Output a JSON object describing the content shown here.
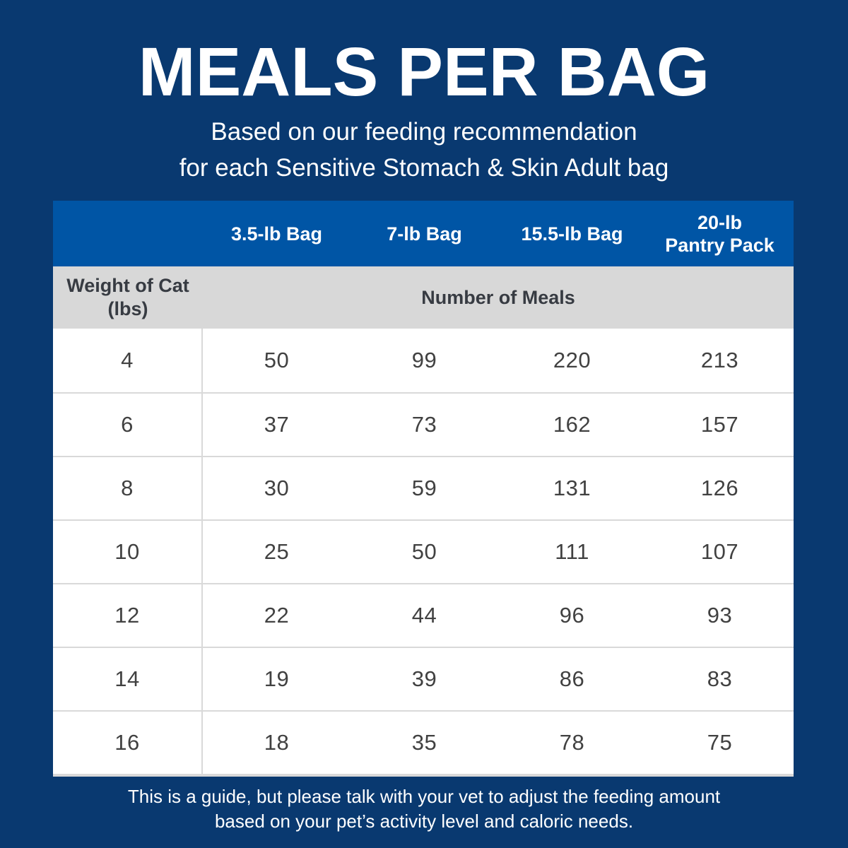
{
  "title": "MEALS PER BAG",
  "subtitle_lines": [
    "Based on our feeding recommendation",
    "for each Sensitive Stomach & Skin Adult bag"
  ],
  "table": {
    "corner_label": "",
    "bag_headers": [
      "3.5-lb Bag",
      "7-lb Bag",
      "15.5-lb Bag",
      "20-lb\nPantry Pack"
    ],
    "weight_header": "Weight of Cat\n(lbs)",
    "meals_header": "Number of Meals",
    "rows": [
      {
        "weight": "4",
        "meals": [
          "50",
          "99",
          "220",
          "213"
        ]
      },
      {
        "weight": "6",
        "meals": [
          "37",
          "73",
          "162",
          "157"
        ]
      },
      {
        "weight": "8",
        "meals": [
          "30",
          "59",
          "131",
          "126"
        ]
      },
      {
        "weight": "10",
        "meals": [
          "25",
          "50",
          "111",
          "107"
        ]
      },
      {
        "weight": "12",
        "meals": [
          "22",
          "44",
          "96",
          "93"
        ]
      },
      {
        "weight": "14",
        "meals": [
          "19",
          "39",
          "86",
          "83"
        ]
      },
      {
        "weight": "16",
        "meals": [
          "18",
          "35",
          "78",
          "75"
        ]
      }
    ]
  },
  "footer_lines": [
    "This is a guide, but please talk with your vet to adjust the feeding amount",
    "based on your pet’s activity level and caloric needs."
  ],
  "colors": {
    "background_navy": "#093970",
    "header_blue": "#0055a5",
    "subheader_gray": "#d8d8d8",
    "row_divider": "#d9d9d9",
    "data_text": "#414141",
    "subheader_text": "#373b42",
    "title_text": "#ffffff"
  },
  "chart_data": {
    "type": "table",
    "title": "MEALS PER BAG",
    "subtitle": "Based on our feeding recommendation for each Sensitive Stomach & Skin Adult bag",
    "columns": [
      "Weight of Cat (lbs)",
      "3.5-lb Bag",
      "7-lb Bag",
      "15.5-lb Bag",
      "20-lb Pantry Pack"
    ],
    "values_unit": "Number of Meals",
    "rows": [
      [
        4,
        50,
        99,
        220,
        213
      ],
      [
        6,
        37,
        73,
        162,
        157
      ],
      [
        8,
        30,
        59,
        131,
        126
      ],
      [
        10,
        25,
        50,
        111,
        107
      ],
      [
        12,
        22,
        44,
        96,
        93
      ],
      [
        14,
        19,
        39,
        86,
        83
      ],
      [
        16,
        18,
        35,
        78,
        75
      ]
    ],
    "note": "This is a guide, but please talk with your vet to adjust the feeding amount based on your pet’s activity level and caloric needs."
  }
}
